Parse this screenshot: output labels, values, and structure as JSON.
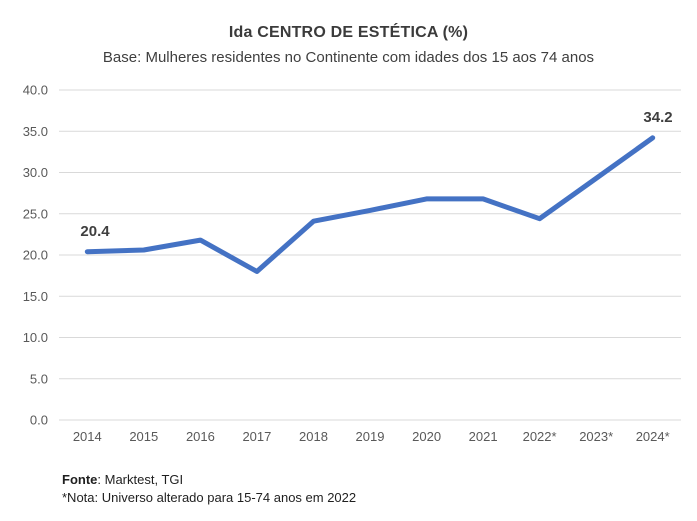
{
  "header": {
    "title": "Ida CENTRO DE ESTÉTICA (%)",
    "subtitle": "Base: Mulheres residentes no Continente com idades dos 15 aos 74 anos"
  },
  "chart_data": {
    "type": "line",
    "title": "Ida CENTRO DE ESTÉTICA (%)",
    "subtitle": "Base: Mulheres residentes no Continente com idades dos 15 aos 74 anos",
    "categories": [
      "2014",
      "2015",
      "2016",
      "2017",
      "2018",
      "2019",
      "2020",
      "2021",
      "2022*",
      "2023*",
      "2024*"
    ],
    "series": [
      {
        "name": "Ida a centro de estética (%)",
        "values": [
          20.4,
          20.6,
          21.8,
          18.0,
          24.1,
          25.4,
          26.8,
          26.8,
          24.4,
          29.3,
          34.2
        ]
      }
    ],
    "ylim": [
      0,
      40
    ],
    "y_step": 5,
    "y_tick_labels": [
      "40.0",
      "35.0",
      "30.0",
      "25.0",
      "20.0",
      "15.0",
      "10.0",
      "5.0",
      "0.0"
    ],
    "grid": "horizontal",
    "legend": "none",
    "line_color": "#4472C4",
    "grid_color": "#D9D9D9",
    "annotations": [
      {
        "category": "2014",
        "value": 20.4,
        "text": "20.4"
      },
      {
        "category": "2024*",
        "value": 34.2,
        "text": "34.2"
      }
    ]
  },
  "footer": {
    "source_label": "Fonte",
    "source_rest": ": Marktest, TGI",
    "note": "*Nota: Universo alterado para 15-74 anos em 2022"
  }
}
